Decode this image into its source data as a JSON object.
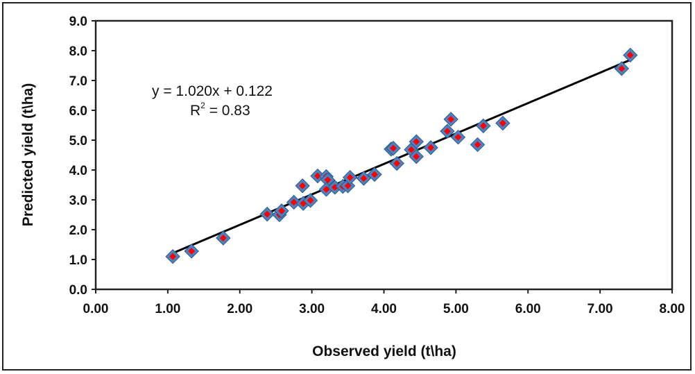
{
  "chart_data": {
    "type": "scatter",
    "title": "",
    "xlabel": "Observed yield (t\\ha)",
    "ylabel": "Predicted yield (t\\ha)",
    "xlim": [
      0,
      8
    ],
    "ylim": [
      0,
      9
    ],
    "x_ticks": [
      "0.00",
      "1.00",
      "2.00",
      "3.00",
      "4.00",
      "5.00",
      "6.00",
      "7.00",
      "8.00"
    ],
    "y_ticks": [
      "0.0",
      "1.0",
      "2.0",
      "3.0",
      "4.0",
      "5.0",
      "6.0",
      "7.0",
      "8.0",
      "9.0"
    ],
    "grid": false,
    "legend": "none",
    "marker_fill": "#4f81bd",
    "marker_edge": "#2e5b8f",
    "marker_center": "#ff0000",
    "trendline": {
      "slope": 1.02,
      "intercept": 0.122,
      "x_range": [
        1.05,
        7.42
      ],
      "color": "#000000"
    },
    "equation_text": "y = 1.020x + 0.122",
    "r2_text": "R",
    "r2_sup": "2",
    "r2_value": " = 0.83",
    "points": [
      [
        1.07,
        1.1
      ],
      [
        1.33,
        1.28
      ],
      [
        1.77,
        1.72
      ],
      [
        2.38,
        2.52
      ],
      [
        2.55,
        2.5
      ],
      [
        2.58,
        2.63
      ],
      [
        2.75,
        2.92
      ],
      [
        2.87,
        3.47
      ],
      [
        2.88,
        2.88
      ],
      [
        2.98,
        2.98
      ],
      [
        3.08,
        3.8
      ],
      [
        3.2,
        3.78
      ],
      [
        3.22,
        3.67
      ],
      [
        3.2,
        3.35
      ],
      [
        3.32,
        3.42
      ],
      [
        3.43,
        3.45
      ],
      [
        3.5,
        3.47
      ],
      [
        3.53,
        3.75
      ],
      [
        3.72,
        3.72
      ],
      [
        3.87,
        3.85
      ],
      [
        4.1,
        4.7
      ],
      [
        4.13,
        4.73
      ],
      [
        4.18,
        4.22
      ],
      [
        4.38,
        4.68
      ],
      [
        4.45,
        4.95
      ],
      [
        4.45,
        4.45
      ],
      [
        4.65,
        4.75
      ],
      [
        4.88,
        5.3
      ],
      [
        4.93,
        5.7
      ],
      [
        5.03,
        5.1
      ],
      [
        5.3,
        4.85
      ],
      [
        5.38,
        5.48
      ],
      [
        5.65,
        5.57
      ],
      [
        7.3,
        7.4
      ],
      [
        7.42,
        7.85
      ]
    ]
  }
}
